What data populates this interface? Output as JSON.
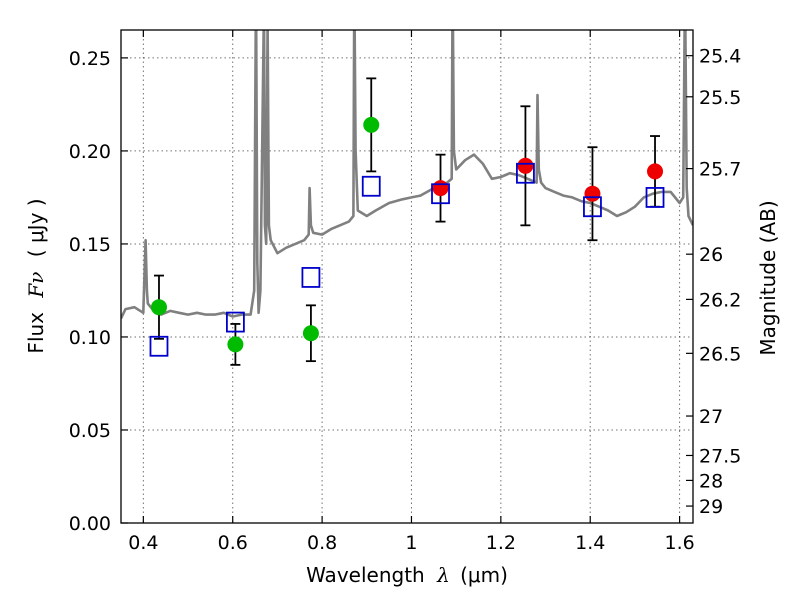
{
  "chart_data": {
    "type": "scatter",
    "xlabel_prefix": "Wavelength",
    "xlabel_symbol": "λ",
    "xlabel_unit": "(μm)",
    "ylabel_prefix": "Flux",
    "ylabel_symbol": "Fν",
    "ylabel_unit": "( μJy )",
    "right_ylabel": "Magnitude (AB)",
    "xlim": [
      0.35,
      1.63
    ],
    "ylim": [
      0.0,
      0.265
    ],
    "grid": true,
    "x_ticks": [
      0.4,
      0.6,
      0.8,
      1.0,
      1.2,
      1.4,
      1.6
    ],
    "x_tick_labels": [
      "0.4",
      "0.6",
      "0.8",
      "1",
      "1.2",
      "1.4",
      "1.6"
    ],
    "y_ticks": [
      0.0,
      0.05,
      0.1,
      0.15,
      0.2,
      0.25
    ],
    "y_tick_labels": [
      "0.00",
      "0.05",
      "0.10",
      "0.15",
      "0.20",
      "0.25"
    ],
    "right_ticks": [
      {
        "label": "25.4",
        "flux": 0.2512
      },
      {
        "label": "25.5",
        "flux": 0.2291
      },
      {
        "label": "25.7",
        "flux": 0.1905
      },
      {
        "label": "26",
        "flux": 0.1445
      },
      {
        "label": "26.2",
        "flux": 0.1202
      },
      {
        "label": "26.5",
        "flux": 0.0912
      },
      {
        "label": "27",
        "flux": 0.0575
      },
      {
        "label": "27.5",
        "flux": 0.0363
      },
      {
        "label": "28",
        "flux": 0.0229
      },
      {
        "label": "29",
        "flux": 0.0091
      }
    ],
    "series": [
      {
        "color": "#00bb00",
        "marker": "circle",
        "points": [
          {
            "x": 0.435,
            "y": 0.116,
            "err": 0.017
          },
          {
            "x": 0.606,
            "y": 0.096,
            "err": 0.011
          },
          {
            "x": 0.775,
            "y": 0.102,
            "err": 0.015
          },
          {
            "x": 0.91,
            "y": 0.214,
            "err": 0.025
          }
        ]
      },
      {
        "color": "#ee0000",
        "marker": "circle",
        "points": [
          {
            "x": 1.065,
            "y": 0.18,
            "err": 0.018
          },
          {
            "x": 1.255,
            "y": 0.192,
            "err": 0.032
          },
          {
            "x": 1.405,
            "y": 0.177,
            "err": 0.025
          },
          {
            "x": 1.545,
            "y": 0.189,
            "err": 0.019
          }
        ]
      },
      {
        "color": "#0000cc",
        "marker": "open-square",
        "points": [
          {
            "x": 0.435,
            "y": 0.095
          },
          {
            "x": 0.606,
            "y": 0.108
          },
          {
            "x": 0.775,
            "y": 0.132
          },
          {
            "x": 0.91,
            "y": 0.181
          },
          {
            "x": 1.065,
            "y": 0.177
          },
          {
            "x": 1.255,
            "y": 0.188
          },
          {
            "x": 1.405,
            "y": 0.17
          },
          {
            "x": 1.545,
            "y": 0.175
          }
        ]
      }
    ],
    "model_spectrum": {
      "color": "#808080",
      "x": [
        0.35,
        0.36,
        0.38,
        0.4,
        0.405,
        0.408,
        0.41,
        0.42,
        0.44,
        0.46,
        0.48,
        0.5,
        0.52,
        0.54,
        0.56,
        0.58,
        0.6,
        0.62,
        0.64,
        0.648,
        0.652,
        0.655,
        0.658,
        0.662,
        0.67,
        0.672,
        0.675,
        0.678,
        0.681,
        0.685,
        0.7,
        0.72,
        0.74,
        0.76,
        0.77,
        0.772,
        0.775,
        0.78,
        0.8,
        0.82,
        0.84,
        0.86,
        0.87,
        0.872,
        0.875,
        0.88,
        0.9,
        0.92,
        0.95,
        0.98,
        1.0,
        1.02,
        1.05,
        1.08,
        1.09,
        1.092,
        1.095,
        1.1,
        1.12,
        1.14,
        1.16,
        1.18,
        1.2,
        1.22,
        1.24,
        1.26,
        1.28,
        1.282,
        1.285,
        1.29,
        1.3,
        1.32,
        1.34,
        1.36,
        1.38,
        1.4,
        1.42,
        1.44,
        1.46,
        1.48,
        1.5,
        1.52,
        1.54,
        1.56,
        1.58,
        1.6,
        1.608,
        1.612,
        1.616,
        1.62,
        1.63
      ],
      "y": [
        0.11,
        0.115,
        0.116,
        0.113,
        0.152,
        0.125,
        0.118,
        0.115,
        0.112,
        0.114,
        0.113,
        0.112,
        0.113,
        0.112,
        0.112,
        0.113,
        0.111,
        0.112,
        0.112,
        0.125,
        0.29,
        0.14,
        0.113,
        0.125,
        0.28,
        0.16,
        0.15,
        0.27,
        0.16,
        0.152,
        0.145,
        0.148,
        0.15,
        0.152,
        0.155,
        0.18,
        0.16,
        0.156,
        0.155,
        0.158,
        0.16,
        0.162,
        0.165,
        0.29,
        0.2,
        0.168,
        0.165,
        0.168,
        0.172,
        0.174,
        0.175,
        0.176,
        0.18,
        0.183,
        0.185,
        0.29,
        0.2,
        0.19,
        0.195,
        0.198,
        0.193,
        0.185,
        0.186,
        0.188,
        0.187,
        0.185,
        0.183,
        0.23,
        0.19,
        0.183,
        0.18,
        0.178,
        0.176,
        0.175,
        0.173,
        0.172,
        0.17,
        0.168,
        0.165,
        0.167,
        0.17,
        0.175,
        0.177,
        0.178,
        0.178,
        0.172,
        0.175,
        0.29,
        0.18,
        0.165,
        0.16
      ]
    }
  }
}
